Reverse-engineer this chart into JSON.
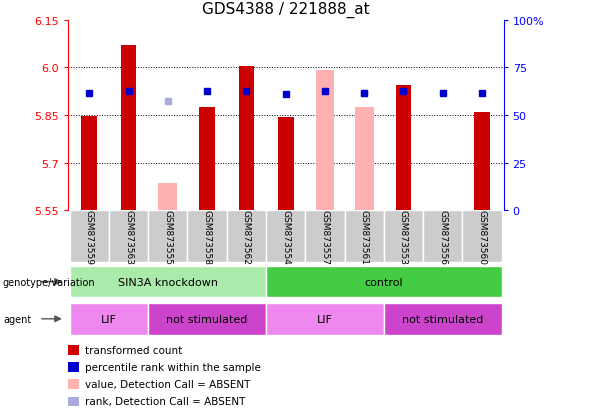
{
  "title": "GDS4388 / 221888_at",
  "samples": [
    "GSM873559",
    "GSM873563",
    "GSM873555",
    "GSM873558",
    "GSM873562",
    "GSM873554",
    "GSM873557",
    "GSM873561",
    "GSM873553",
    "GSM873556",
    "GSM873560"
  ],
  "red_values": [
    5.848,
    6.07,
    null,
    5.875,
    6.005,
    5.842,
    null,
    null,
    5.945,
    null,
    5.858
  ],
  "pink_values": [
    null,
    null,
    5.635,
    null,
    null,
    null,
    5.99,
    5.875,
    null,
    null,
    null
  ],
  "blue_sq": [
    5.92,
    5.925,
    null,
    5.925,
    5.925,
    5.915,
    5.925,
    5.92,
    5.925,
    5.92,
    5.92
  ],
  "lavender_sq": [
    null,
    null,
    5.895,
    null,
    null,
    null,
    5.925,
    5.92,
    null,
    null,
    null
  ],
  "ymin": 5.55,
  "ymax": 6.15,
  "yticks_left": [
    5.55,
    5.7,
    5.85,
    6.0,
    6.15
  ],
  "yticks_right_pos": [
    5.55,
    5.7,
    5.85,
    6.0,
    6.15
  ],
  "right_tick_labels": [
    "0",
    "25",
    "50",
    "75",
    "100%"
  ],
  "red_color": "#cc0000",
  "pink_color": "#ffb0b0",
  "blue_color": "#0000cc",
  "lavender_color": "#aaaadd",
  "genotype_groups": [
    {
      "label": "SIN3A knockdown",
      "start": 0,
      "end": 5,
      "color": "#aaeaaa"
    },
    {
      "label": "control",
      "start": 5,
      "end": 11,
      "color": "#44cc44"
    }
  ],
  "agent_groups": [
    {
      "label": "LIF",
      "start": 0,
      "end": 2,
      "color": "#ee88ee"
    },
    {
      "label": "not stimulated",
      "start": 2,
      "end": 5,
      "color": "#cc44cc"
    },
    {
      "label": "LIF",
      "start": 5,
      "end": 8,
      "color": "#ee88ee"
    },
    {
      "label": "not stimulated",
      "start": 8,
      "end": 11,
      "color": "#cc44cc"
    }
  ],
  "legend_items": [
    {
      "label": "transformed count",
      "color": "#cc0000"
    },
    {
      "label": "percentile rank within the sample",
      "color": "#0000cc"
    },
    {
      "label": "value, Detection Call = ABSENT",
      "color": "#ffb0b0"
    },
    {
      "label": "rank, Detection Call = ABSENT",
      "color": "#aaaadd"
    }
  ]
}
